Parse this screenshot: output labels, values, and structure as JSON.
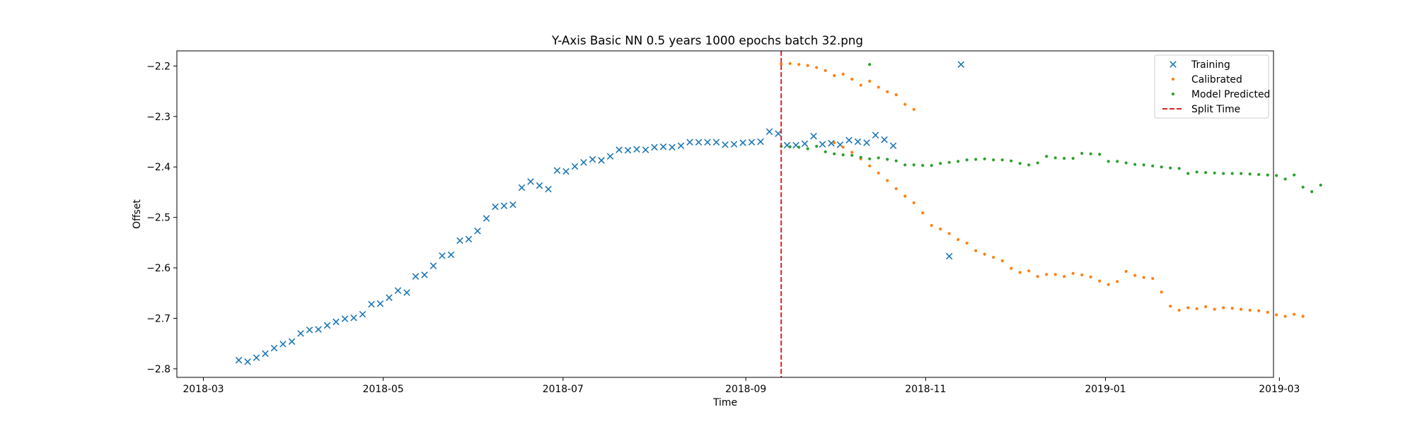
{
  "chart_data": {
    "type": "scatter",
    "title": "Y-Axis Basic NN 0.5 years 1000 epochs batch 32.png",
    "xlabel": "Time",
    "ylabel": "Offset",
    "x_axis_type": "date",
    "xlim": [
      "2018-02-20",
      "2019-02-27"
    ],
    "ylim": [
      -2.817,
      -2.17
    ],
    "xticks": [
      "2018-03-01",
      "2018-05-01",
      "2018-07-01",
      "2018-09-01",
      "2018-11-01",
      "2019-01-01",
      "2019-03-01"
    ],
    "xtick_labels": [
      "2018-03",
      "2018-05",
      "2018-07",
      "2018-09",
      "2018-11",
      "2019-01",
      "2019-03"
    ],
    "yticks": [
      -2.2,
      -2.3,
      -2.4,
      -2.5,
      -2.6,
      -2.7,
      -2.8
    ],
    "ytick_labels": [
      "−2.2",
      "−2.3",
      "−2.4",
      "−2.5",
      "−2.6",
      "−2.7",
      "−2.8"
    ],
    "grid": false,
    "legend_position": "top-right",
    "split_time": "2018-09-13",
    "series": [
      {
        "name": "Training",
        "marker": "x",
        "color": "#1f77b4",
        "points": [
          [
            "2018-03-13",
            -2.783
          ],
          [
            "2018-03-16",
            -2.786
          ],
          [
            "2018-03-19",
            -2.778
          ],
          [
            "2018-03-22",
            -2.77
          ],
          [
            "2018-03-25",
            -2.759
          ],
          [
            "2018-03-28",
            -2.751
          ],
          [
            "2018-03-31",
            -2.746
          ],
          [
            "2018-04-03",
            -2.73
          ],
          [
            "2018-04-06",
            -2.723
          ],
          [
            "2018-04-09",
            -2.722
          ],
          [
            "2018-04-12",
            -2.714
          ],
          [
            "2018-04-15",
            -2.707
          ],
          [
            "2018-04-18",
            -2.701
          ],
          [
            "2018-04-21",
            -2.699
          ],
          [
            "2018-04-24",
            -2.692
          ],
          [
            "2018-04-27",
            -2.672
          ],
          [
            "2018-04-30",
            -2.671
          ],
          [
            "2018-05-03",
            -2.659
          ],
          [
            "2018-05-06",
            -2.645
          ],
          [
            "2018-05-09",
            -2.649
          ],
          [
            "2018-05-12",
            -2.617
          ],
          [
            "2018-05-15",
            -2.614
          ],
          [
            "2018-05-18",
            -2.596
          ],
          [
            "2018-05-21",
            -2.576
          ],
          [
            "2018-05-24",
            -2.574
          ],
          [
            "2018-05-27",
            -2.546
          ],
          [
            "2018-05-30",
            -2.543
          ],
          [
            "2018-06-02",
            -2.527
          ],
          [
            "2018-06-05",
            -2.502
          ],
          [
            "2018-06-08",
            -2.479
          ],
          [
            "2018-06-11",
            -2.477
          ],
          [
            "2018-06-14",
            -2.475
          ],
          [
            "2018-06-17",
            -2.441
          ],
          [
            "2018-06-20",
            -2.429
          ],
          [
            "2018-06-23",
            -2.437
          ],
          [
            "2018-06-26",
            -2.444
          ],
          [
            "2018-06-29",
            -2.407
          ],
          [
            "2018-07-02",
            -2.409
          ],
          [
            "2018-07-05",
            -2.399
          ],
          [
            "2018-07-08",
            -2.391
          ],
          [
            "2018-07-11",
            -2.385
          ],
          [
            "2018-07-14",
            -2.387
          ],
          [
            "2018-07-17",
            -2.379
          ],
          [
            "2018-07-20",
            -2.366
          ],
          [
            "2018-07-23",
            -2.367
          ],
          [
            "2018-07-26",
            -2.365
          ],
          [
            "2018-07-29",
            -2.366
          ],
          [
            "2018-08-01",
            -2.361
          ],
          [
            "2018-08-04",
            -2.36
          ],
          [
            "2018-08-07",
            -2.361
          ],
          [
            "2018-08-10",
            -2.358
          ],
          [
            "2018-08-13",
            -2.351
          ],
          [
            "2018-08-16",
            -2.351
          ],
          [
            "2018-08-19",
            -2.351
          ],
          [
            "2018-08-22",
            -2.351
          ],
          [
            "2018-08-25",
            -2.356
          ],
          [
            "2018-08-28",
            -2.355
          ],
          [
            "2018-08-31",
            -2.352
          ],
          [
            "2018-09-03",
            -2.351
          ],
          [
            "2018-09-06",
            -2.35
          ],
          [
            "2018-09-09",
            -2.33
          ],
          [
            "2018-09-12",
            -2.334
          ],
          [
            "2018-09-15",
            -2.357
          ],
          [
            "2018-09-18",
            -2.357
          ],
          [
            "2018-09-21",
            -2.354
          ],
          [
            "2018-09-24",
            -2.339
          ],
          [
            "2018-09-27",
            -2.355
          ],
          [
            "2018-09-30",
            -2.353
          ],
          [
            "2018-10-03",
            -2.356
          ],
          [
            "2018-10-06",
            -2.347
          ],
          [
            "2018-10-09",
            -2.35
          ],
          [
            "2018-10-12",
            -2.352
          ],
          [
            "2018-10-15",
            -2.337
          ],
          [
            "2018-10-18",
            -2.346
          ],
          [
            "2018-10-21",
            -2.358
          ],
          [
            "2018-11-09",
            -2.577
          ],
          [
            "2018-11-13",
            -2.197
          ]
        ]
      },
      {
        "name": "Calibrated",
        "marker": "dot",
        "color": "#ff7f0e",
        "points": [
          [
            "2018-09-13",
            -2.196
          ],
          [
            "2018-09-16",
            -2.195
          ],
          [
            "2018-09-19",
            -2.197
          ],
          [
            "2018-09-22",
            -2.199
          ],
          [
            "2018-09-25",
            -2.203
          ],
          [
            "2018-09-28",
            -2.209
          ],
          [
            "2018-10-01",
            -2.219
          ],
          [
            "2018-10-04",
            -2.216
          ],
          [
            "2018-10-07",
            -2.226
          ],
          [
            "2018-10-10",
            -2.238
          ],
          [
            "2018-10-13",
            -2.23
          ],
          [
            "2018-10-16",
            -2.242
          ],
          [
            "2018-10-19",
            -2.251
          ],
          [
            "2018-10-22",
            -2.257
          ],
          [
            "2018-10-25",
            -2.276
          ],
          [
            "2018-10-28",
            -2.286
          ],
          [
            "2018-10-01",
            -2.352
          ],
          [
            "2018-10-04",
            -2.361
          ],
          [
            "2018-10-07",
            -2.371
          ],
          [
            "2018-10-10",
            -2.384
          ],
          [
            "2018-10-13",
            -2.398
          ],
          [
            "2018-10-16",
            -2.412
          ],
          [
            "2018-10-19",
            -2.427
          ],
          [
            "2018-10-22",
            -2.443
          ],
          [
            "2018-10-25",
            -2.458
          ],
          [
            "2018-10-28",
            -2.471
          ],
          [
            "2018-10-31",
            -2.491
          ],
          [
            "2018-11-03",
            -2.516
          ],
          [
            "2018-11-06",
            -2.523
          ],
          [
            "2018-11-09",
            -2.532
          ],
          [
            "2018-11-12",
            -2.544
          ],
          [
            "2018-11-15",
            -2.551
          ],
          [
            "2018-11-18",
            -2.566
          ],
          [
            "2018-11-21",
            -2.573
          ],
          [
            "2018-11-24",
            -2.579
          ],
          [
            "2018-11-27",
            -2.586
          ],
          [
            "2018-11-30",
            -2.601
          ],
          [
            "2018-12-03",
            -2.609
          ],
          [
            "2018-12-06",
            -2.606
          ],
          [
            "2018-12-09",
            -2.617
          ],
          [
            "2018-12-12",
            -2.613
          ],
          [
            "2018-12-15",
            -2.613
          ],
          [
            "2018-12-18",
            -2.617
          ],
          [
            "2018-12-21",
            -2.611
          ],
          [
            "2018-12-24",
            -2.614
          ],
          [
            "2018-12-27",
            -2.618
          ],
          [
            "2018-12-30",
            -2.626
          ],
          [
            "2019-01-02",
            -2.633
          ],
          [
            "2019-01-05",
            -2.627
          ],
          [
            "2019-01-08",
            -2.607
          ],
          [
            "2019-01-11",
            -2.615
          ],
          [
            "2019-01-14",
            -2.619
          ],
          [
            "2019-01-17",
            -2.621
          ],
          [
            "2019-01-20",
            -2.648
          ],
          [
            "2019-01-23",
            -2.676
          ],
          [
            "2019-01-26",
            -2.684
          ],
          [
            "2019-01-29",
            -2.679
          ],
          [
            "2019-02-01",
            -2.681
          ],
          [
            "2019-02-04",
            -2.677
          ],
          [
            "2019-02-07",
            -2.682
          ],
          [
            "2019-02-10",
            -2.679
          ],
          [
            "2019-02-13",
            -2.68
          ],
          [
            "2019-02-16",
            -2.682
          ],
          [
            "2019-02-19",
            -2.684
          ],
          [
            "2019-02-22",
            -2.685
          ],
          [
            "2019-02-25",
            -2.688
          ],
          [
            "2019-02-28",
            -2.693
          ],
          [
            "2019-03-03",
            -2.696
          ],
          [
            "2019-03-06",
            -2.692
          ],
          [
            "2019-03-09",
            -2.696
          ]
        ]
      },
      {
        "name": "Model Predicted",
        "marker": "dot",
        "color": "#2ca02c",
        "points": [
          [
            "2018-09-13",
            -2.359
          ],
          [
            "2018-09-16",
            -2.36
          ],
          [
            "2018-09-19",
            -2.361
          ],
          [
            "2018-09-22",
            -2.364
          ],
          [
            "2018-09-25",
            -2.359
          ],
          [
            "2018-09-28",
            -2.37
          ],
          [
            "2018-10-01",
            -2.374
          ],
          [
            "2018-10-04",
            -2.376
          ],
          [
            "2018-10-07",
            -2.377
          ],
          [
            "2018-10-10",
            -2.381
          ],
          [
            "2018-10-13",
            -2.384
          ],
          [
            "2018-10-16",
            -2.382
          ],
          [
            "2018-10-19",
            -2.385
          ],
          [
            "2018-10-22",
            -2.388
          ],
          [
            "2018-10-25",
            -2.396
          ],
          [
            "2018-10-28",
            -2.396
          ],
          [
            "2018-10-31",
            -2.397
          ],
          [
            "2018-11-03",
            -2.397
          ],
          [
            "2018-11-06",
            -2.393
          ],
          [
            "2018-11-09",
            -2.391
          ],
          [
            "2018-11-12",
            -2.389
          ],
          [
            "2018-11-15",
            -2.386
          ],
          [
            "2018-11-18",
            -2.385
          ],
          [
            "2018-11-21",
            -2.384
          ],
          [
            "2018-11-24",
            -2.386
          ],
          [
            "2018-11-27",
            -2.386
          ],
          [
            "2018-11-30",
            -2.388
          ],
          [
            "2018-12-03",
            -2.393
          ],
          [
            "2018-12-06",
            -2.396
          ],
          [
            "2018-12-09",
            -2.392
          ],
          [
            "2018-12-12",
            -2.379
          ],
          [
            "2018-12-15",
            -2.382
          ],
          [
            "2018-12-18",
            -2.383
          ],
          [
            "2018-12-21",
            -2.383
          ],
          [
            "2018-12-24",
            -2.373
          ],
          [
            "2018-12-27",
            -2.374
          ],
          [
            "2018-12-30",
            -2.375
          ],
          [
            "2019-01-02",
            -2.389
          ],
          [
            "2019-01-05",
            -2.389
          ],
          [
            "2019-01-08",
            -2.392
          ],
          [
            "2019-01-11",
            -2.395
          ],
          [
            "2019-01-14",
            -2.396
          ],
          [
            "2019-01-17",
            -2.398
          ],
          [
            "2019-01-20",
            -2.4
          ],
          [
            "2019-01-23",
            -2.402
          ],
          [
            "2019-01-26",
            -2.403
          ],
          [
            "2019-01-29",
            -2.413
          ],
          [
            "2019-02-01",
            -2.41
          ],
          [
            "2019-02-04",
            -2.411
          ],
          [
            "2019-02-07",
            -2.412
          ],
          [
            "2019-02-10",
            -2.413
          ],
          [
            "2019-02-13",
            -2.413
          ],
          [
            "2019-02-16",
            -2.413
          ],
          [
            "2019-02-19",
            -2.414
          ],
          [
            "2019-02-22",
            -2.415
          ],
          [
            "2019-02-25",
            -2.416
          ],
          [
            "2019-02-28",
            -2.417
          ],
          [
            "2019-03-03",
            -2.424
          ],
          [
            "2019-03-06",
            -2.416
          ],
          [
            "2019-03-09",
            -2.44
          ],
          [
            "2019-03-12",
            -2.449
          ],
          [
            "2019-03-15",
            -2.436
          ],
          [
            "2018-10-13",
            -2.197
          ]
        ]
      }
    ]
  },
  "legend": {
    "items": [
      {
        "label": "Training",
        "color": "#1f77b4",
        "marker": "x"
      },
      {
        "label": "Calibrated",
        "color": "#ff7f0e",
        "marker": "dot"
      },
      {
        "label": "Model Predicted",
        "color": "#2ca02c",
        "marker": "dot"
      },
      {
        "label": "Split Time",
        "color": "#d62728",
        "marker": "dashed-line"
      }
    ]
  }
}
